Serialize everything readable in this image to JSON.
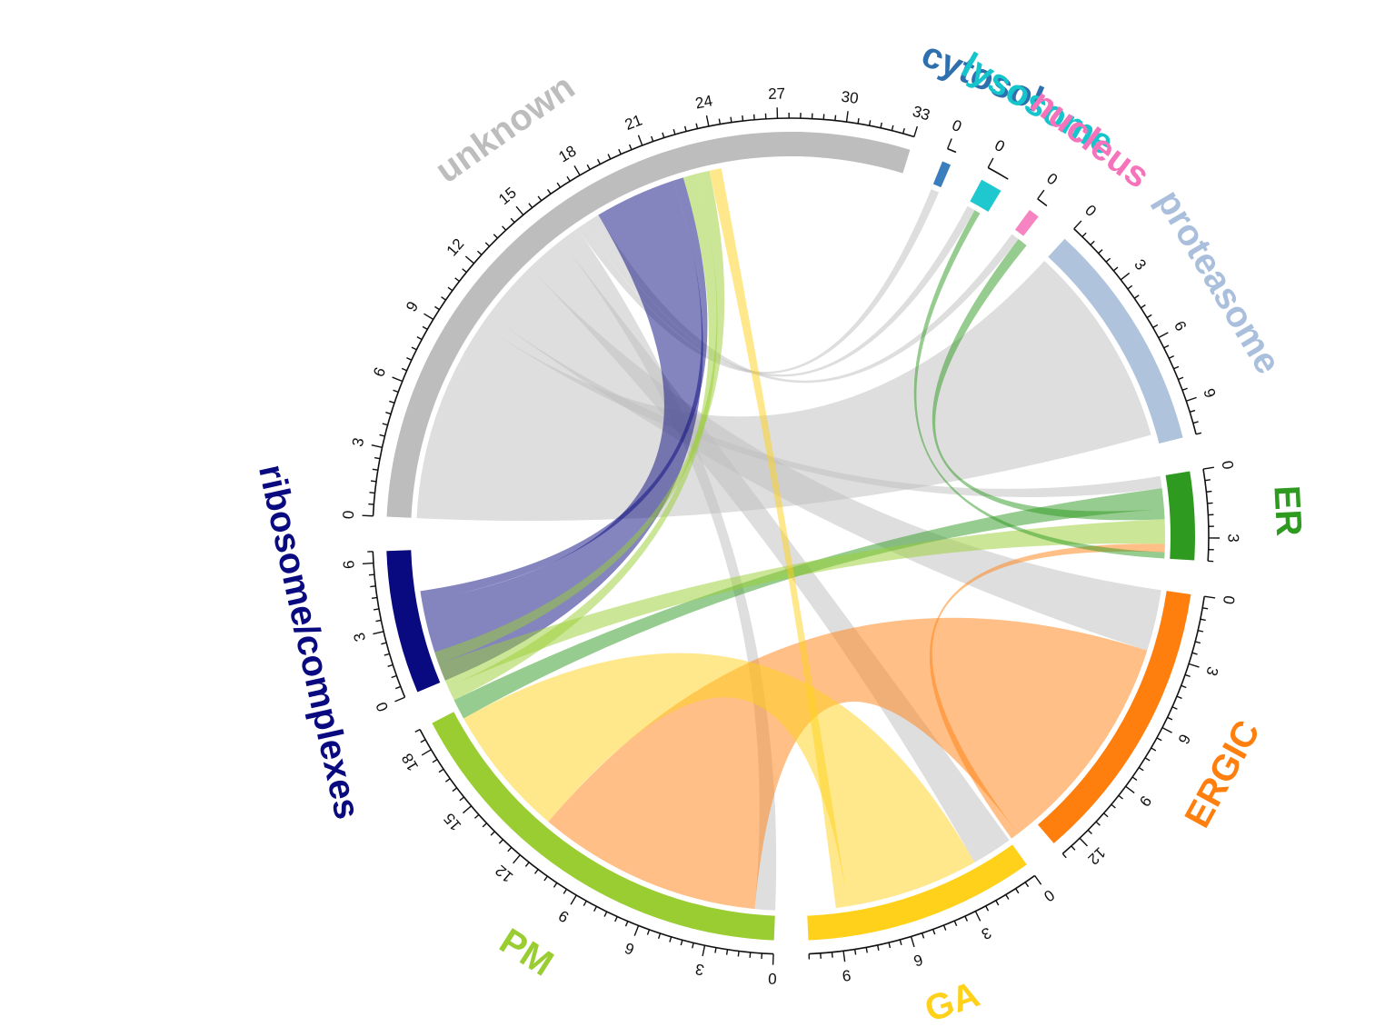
{
  "chart_data": {
    "type": "chord",
    "sectors": [
      {
        "id": "unknown",
        "label": "unknown",
        "color": "#bdbdbd",
        "label_color": "#bdbdbd",
        "size": 33,
        "tick_step": 3
      },
      {
        "id": "cytosol",
        "label": "cytosol",
        "color": "#3a7ebe",
        "label_color": "#2f6fae",
        "size": 0.4,
        "tick_step": 0
      },
      {
        "id": "lysosome",
        "label": "lysosome",
        "color": "#1fc8cf",
        "label_color": "#14c5cc",
        "size": 1,
        "tick_step": 0
      },
      {
        "id": "nucleus",
        "label": "nucleus",
        "color": "#f683c2",
        "label_color": "#f573bb",
        "size": 0.5,
        "tick_step": 0
      },
      {
        "id": "proteasome",
        "label": "proteasome",
        "color": "#b0c3dd",
        "label_color": "#a9bfdc",
        "size": 10.5,
        "tick_step": 3
      },
      {
        "id": "ER",
        "label": "ER",
        "color": "#2e9a1f",
        "label_color": "#2e9a1f",
        "size": 4,
        "tick_step": 3
      },
      {
        "id": "ERGIC",
        "label": "ERGIC",
        "color": "#ff7f0e",
        "label_color": "#ff7f0e",
        "size": 13,
        "tick_step": 3
      },
      {
        "id": "GA",
        "label": "GA",
        "color": "#ffd11a",
        "label_color": "#ffd11a",
        "size": 10.5,
        "tick_step": 3
      },
      {
        "id": "PM",
        "label": "PM",
        "color": "#9acd32",
        "label_color": "#9acd32",
        "size": 19,
        "tick_step": 3
      },
      {
        "id": "ribosome",
        "label": "ribosome/complexes",
        "color": "#0a0a80",
        "label_color": "#0a0a80",
        "size": 6.5,
        "tick_step": 3
      }
    ],
    "links": [
      {
        "from": "unknown",
        "to": "proteasome",
        "value": 10
      },
      {
        "from": "unknown",
        "to": "ER",
        "value": 0.6
      },
      {
        "from": "unknown",
        "to": "ERGIC",
        "value": 3
      },
      {
        "from": "unknown",
        "to": "GA",
        "value": 2
      },
      {
        "from": "unknown",
        "to": "PM",
        "value": 1
      },
      {
        "from": "unknown",
        "to": "cytosol",
        "value": 0.4
      },
      {
        "from": "unknown",
        "to": "lysosome",
        "value": 0.4
      },
      {
        "from": "unknown",
        "to": "nucleus",
        "value": 0.4
      },
      {
        "from": "ribosome",
        "to": "unknown",
        "value": 4
      },
      {
        "from": "ribosome",
        "to": "unknown",
        "value": 0.5
      },
      {
        "from": "ERGIC",
        "to": "PM",
        "value": 11
      },
      {
        "from": "GA",
        "to": "PM",
        "value": 6.5
      },
      {
        "from": "ER",
        "to": "PM",
        "value": 1
      },
      {
        "from": "ER",
        "to": "nucleus",
        "value": 0.5
      },
      {
        "from": "PM",
        "to": "unknown",
        "value": 0.7
      },
      {
        "from": "PM",
        "to": "ER",
        "value": 1.2
      },
      {
        "from": "PM",
        "to": "unknown",
        "value": 0.6
      },
      {
        "from": "GA",
        "to": "unknown",
        "value": 0.6
      },
      {
        "from": "ERGIC",
        "to": "ER",
        "value": 0.4
      },
      {
        "from": "ER",
        "to": "lysosome",
        "value": 0.3
      }
    ]
  }
}
